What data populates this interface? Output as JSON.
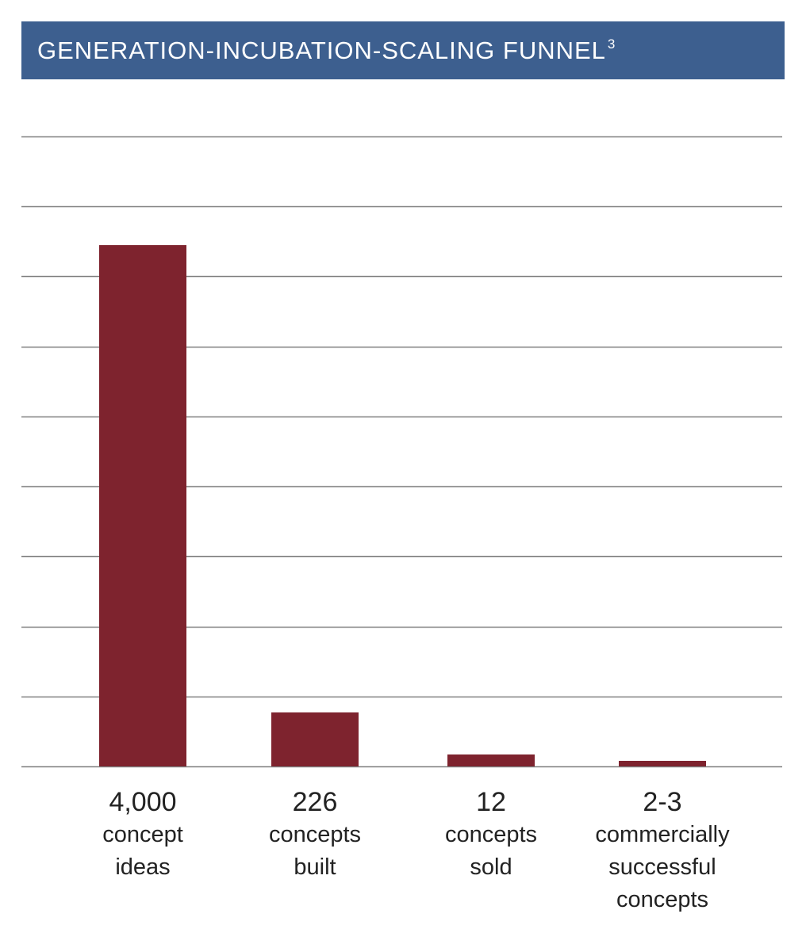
{
  "title": "GENERATION-INCUBATION-SCALING FUNNEL",
  "footnote": "3",
  "colors": {
    "banner": "#3d5f8f",
    "bar": "#7e232e",
    "grid": "#808080"
  },
  "chart_data": {
    "type": "bar",
    "title": "GENERATION-INCUBATION-SCALING FUNNEL",
    "categories": [
      "4,000",
      "226",
      "12",
      "2-3"
    ],
    "values": [
      4000,
      226,
      12,
      2.5
    ],
    "descriptions": [
      "concept\nideas",
      "concepts\nbuilt",
      "concepts\nsold",
      "commercially\nsuccessful\nconcepts"
    ],
    "ylim": [
      0,
      4000
    ],
    "grid": true,
    "legend": "none"
  }
}
